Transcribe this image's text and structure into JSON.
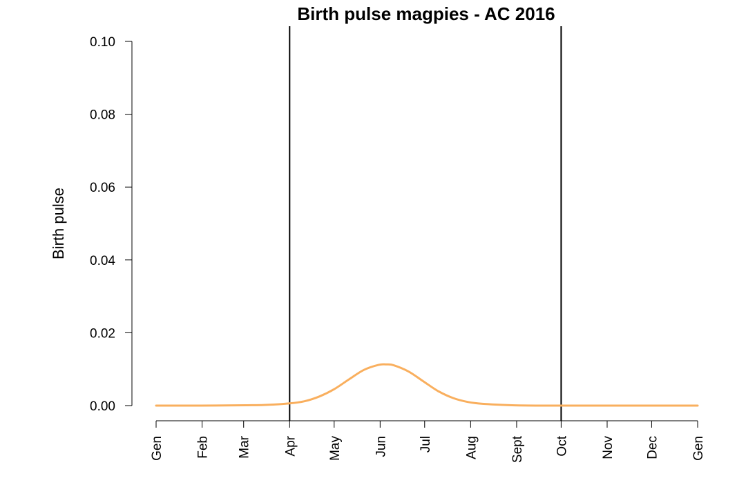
{
  "chart_data": {
    "type": "line",
    "title": "Birth pulse magpies - AC 2016",
    "xlabel": "",
    "ylabel": "Birth pulse",
    "ylim": [
      0,
      0.1
    ],
    "xlim": [
      0,
      365
    ],
    "yticks": [
      {
        "value": 0.0,
        "label": "0.00"
      },
      {
        "value": 0.02,
        "label": "0.02"
      },
      {
        "value": 0.04,
        "label": "0.04"
      },
      {
        "value": 0.06,
        "label": "0.06"
      },
      {
        "value": 0.08,
        "label": "0.08"
      },
      {
        "value": 0.1,
        "label": "0.10"
      }
    ],
    "xticks": [
      {
        "value": 0,
        "label": "Gen"
      },
      {
        "value": 31,
        "label": "Feb"
      },
      {
        "value": 59,
        "label": "Mar"
      },
      {
        "value": 90,
        "label": "Apr"
      },
      {
        "value": 120,
        "label": "May"
      },
      {
        "value": 151,
        "label": "Jun"
      },
      {
        "value": 181,
        "label": "Jul"
      },
      {
        "value": 212,
        "label": "Aug"
      },
      {
        "value": 243,
        "label": "Sept"
      },
      {
        "value": 273,
        "label": "Oct"
      },
      {
        "value": 304,
        "label": "Nov"
      },
      {
        "value": 334,
        "label": "Dec"
      },
      {
        "value": 365,
        "label": "Gen"
      }
    ],
    "vlines": [
      90,
      273
    ],
    "series": [
      {
        "color": "#F9AF5E",
        "x": [
          0,
          30,
          60,
          75,
          90,
          100,
          110,
          120,
          130,
          140,
          150,
          155,
          160,
          170,
          180,
          190,
          200,
          210,
          220,
          240,
          260,
          280,
          300,
          330,
          365
        ],
        "y": [
          0,
          0,
          0.0001,
          0.0002,
          0.0006,
          0.0012,
          0.0025,
          0.0045,
          0.0072,
          0.0098,
          0.0112,
          0.0113,
          0.0111,
          0.0094,
          0.0067,
          0.004,
          0.0021,
          0.001,
          0.0005,
          0.0001,
          0,
          0,
          0,
          0,
          0
        ]
      }
    ],
    "grid": false,
    "legend": "none"
  }
}
